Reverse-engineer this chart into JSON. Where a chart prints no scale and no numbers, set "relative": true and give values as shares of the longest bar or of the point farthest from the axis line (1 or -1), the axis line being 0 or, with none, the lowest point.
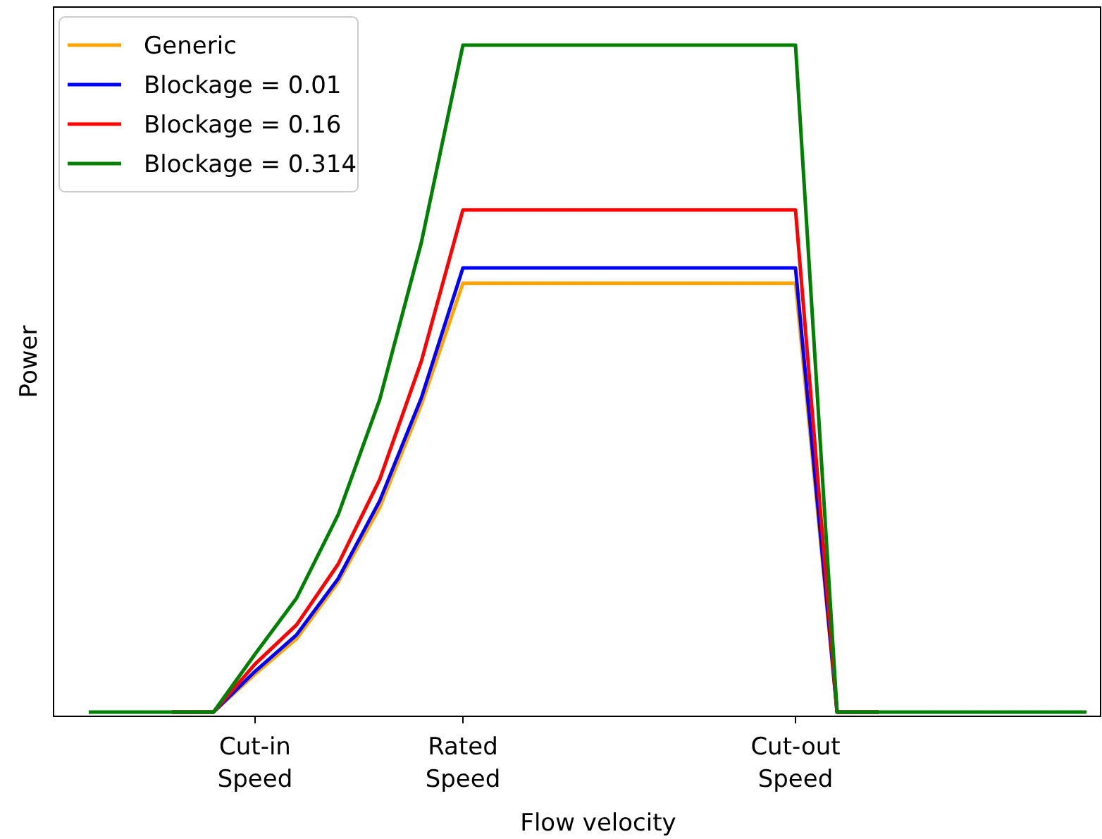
{
  "chart_data": {
    "type": "line",
    "relative": true,
    "xlabel": "Flow velocity",
    "ylabel": "Power",
    "categories": [
      null,
      null,
      null,
      null,
      "Cut-in\nSpeed",
      null,
      null,
      null,
      null,
      "Rated\nSpeed",
      null,
      null,
      null,
      null,
      null,
      null,
      null,
      "Cut-out\nSpeed",
      null,
      null,
      null,
      null,
      null,
      null,
      null
    ],
    "series": [
      {
        "name": "Generic",
        "color": "#ffa500",
        "values": [
          null,
          null,
          0,
          0,
          0.057,
          0.11,
          0.195,
          0.307,
          0.461,
          0.643,
          0.643,
          0.643,
          0.643,
          0.643,
          0.643,
          0.643,
          0.643,
          0.643,
          0,
          0,
          null,
          null,
          null,
          null,
          null
        ]
      },
      {
        "name": "Blockage = 0.01",
        "color": "#0000ff",
        "values": [
          null,
          null,
          0,
          0,
          0.061,
          0.116,
          0.2,
          0.317,
          0.471,
          0.666,
          0.666,
          0.666,
          0.666,
          0.666,
          0.666,
          0.666,
          0.666,
          0.666,
          0,
          0,
          null,
          null,
          null,
          null,
          null
        ]
      },
      {
        "name": "Blockage = 0.16",
        "color": "#ff0000",
        "values": [
          null,
          null,
          0,
          0,
          0.072,
          0.131,
          0.222,
          0.349,
          0.526,
          0.753,
          0.753,
          0.753,
          0.753,
          0.753,
          0.753,
          0.753,
          0.753,
          0.753,
          0,
          0,
          null,
          null,
          null,
          null,
          null
        ]
      },
      {
        "name": "Blockage = 0.314",
        "color": "#008000",
        "values": [
          0,
          0,
          0,
          0,
          0.087,
          0.171,
          0.296,
          0.469,
          0.704,
          1,
          1,
          1,
          1,
          1,
          1,
          1,
          1,
          1,
          0,
          0,
          0,
          0,
          0,
          0,
          0
        ]
      }
    ],
    "legend": "top left",
    "grid": false,
    "marker": "none",
    "line_style": "solid"
  }
}
